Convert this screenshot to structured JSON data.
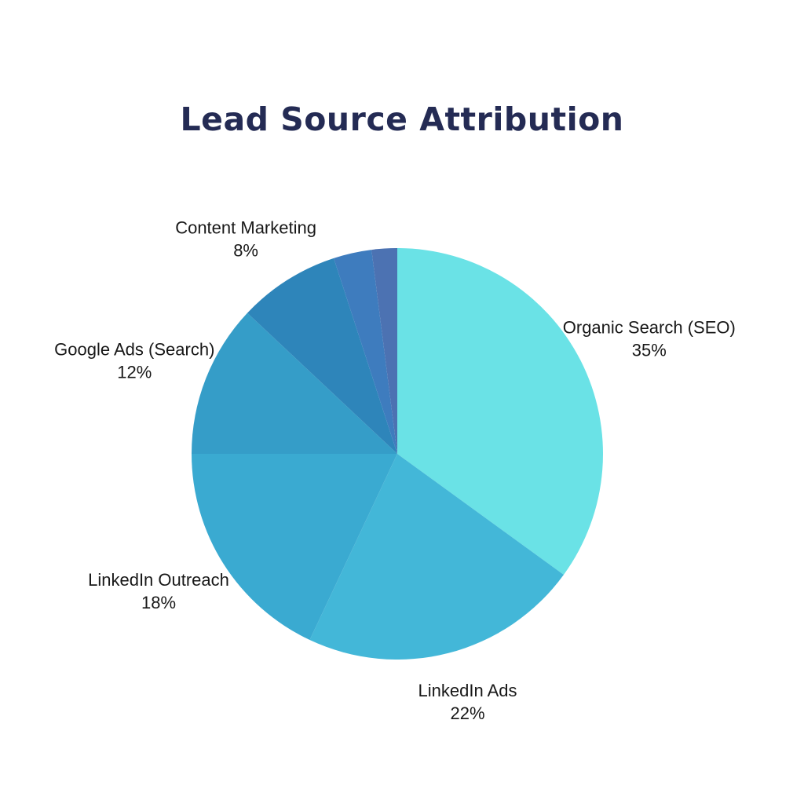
{
  "title": "Lead Source Attribution",
  "colors": {
    "background": "#ffffff",
    "title_text": "#242b54",
    "label_text": "#181818"
  },
  "chart_data": {
    "type": "pie",
    "title": "Lead Source Attribution",
    "direction": "clockwise",
    "start_angle_deg": 0,
    "legend_position": "none",
    "label_style": "outside, two lines (name above percent)",
    "segments": [
      {
        "label": "Organic Search (SEO)",
        "value": 35,
        "percent_label": "35%",
        "color": "#6ae2e6"
      },
      {
        "label": "LinkedIn Ads",
        "value": 22,
        "percent_label": "22%",
        "color": "#43b7d8"
      },
      {
        "label": "LinkedIn Outreach",
        "value": 18,
        "percent_label": "18%",
        "color": "#3aaad1"
      },
      {
        "label": "Google Ads (Search)",
        "value": 12,
        "percent_label": "12%",
        "color": "#359dc8"
      },
      {
        "label": "Content Marketing",
        "value": 8,
        "percent_label": "8%",
        "color": "#2e85ba"
      },
      {
        "label": "",
        "value": 3,
        "percent_label": "",
        "color": "#3e7cbe"
      },
      {
        "label": "",
        "value": 2,
        "percent_label": "",
        "color": "#4c72b2"
      }
    ]
  }
}
